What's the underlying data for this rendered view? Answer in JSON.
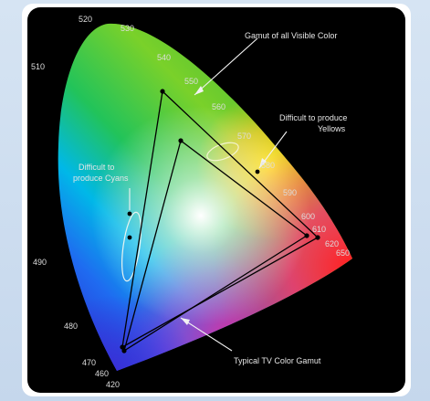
{
  "annotations": {
    "gamut_visible": "Gamut of all Visible Color",
    "yellows_line1": "Difficult to produce",
    "yellows_line2": "Yellows",
    "cyans_line1": "Difficult to",
    "cyans_line2": "produce Cyans",
    "tv_gamut": "Typical TV Color Gamut"
  },
  "wavelengths": {
    "w520": "520",
    "w530": "530",
    "w510": "510",
    "w540": "540",
    "w550": "550",
    "w560": "560",
    "w570": "570",
    "w580": "580",
    "w590": "590",
    "w600": "600",
    "w610": "610",
    "w620": "620",
    "w650": "650",
    "w490": "490",
    "w480": "480",
    "w470": "470",
    "w460": "460",
    "w420": "420"
  },
  "colors": {
    "background": "#000000",
    "lines": "#000000",
    "labels": "#e6e6e6"
  }
}
